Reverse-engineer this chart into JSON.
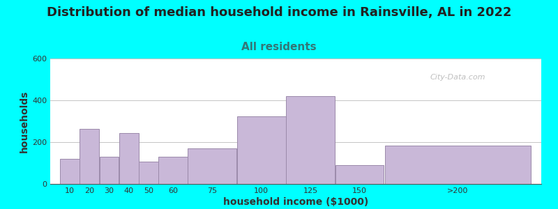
{
  "title": "Distribution of median household income in Rainsville, AL in 2022",
  "subtitle": "All residents",
  "xlabel": "household income ($1000)",
  "ylabel": "households",
  "background_outer": "#00FFFF",
  "bar_color": "#C9B8D8",
  "bar_edge_color": "#9B8AAA",
  "categories": [
    "10",
    "20",
    "30",
    "40",
    "50",
    "60",
    "75",
    "100",
    "125",
    "150",
    ">200"
  ],
  "values": [
    120,
    265,
    130,
    245,
    108,
    130,
    170,
    325,
    420,
    90,
    185
  ],
  "ylim": [
    0,
    600
  ],
  "yticks": [
    0,
    200,
    400,
    600
  ],
  "title_fontsize": 13,
  "subtitle_fontsize": 11,
  "axis_label_fontsize": 10,
  "tick_fontsize": 8,
  "watermark": "City-Data.com",
  "grad_top": "#dff0dc",
  "grad_bottom": "#ffffff"
}
